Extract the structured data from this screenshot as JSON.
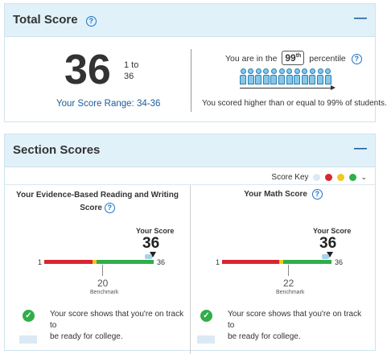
{
  "total": {
    "title": "Total Score",
    "score": "36",
    "of_line1": "1 to",
    "of_line2": "36",
    "range": "Your Score Range: 34-36",
    "percentile_prefix": "You are in the",
    "percentile_value": "99",
    "percentile_sup": "th",
    "percentile_suffix": "percentile",
    "percentile_note": "You scored higher than or equal to 99% of students."
  },
  "section": {
    "title": "Section Scores",
    "score_key_label": "Score Key",
    "key_colors": [
      "#dbe9f4",
      "#d7262f",
      "#f0c81e",
      "#2fae4a"
    ],
    "reading": {
      "title_line1": "Your Evidence-Based Reading and Writing",
      "title_line2": "Score",
      "your_score_label": "Your Score",
      "score": "36",
      "min": "1",
      "max": "36",
      "benchmark": "20",
      "benchmark_label": "Benchmark",
      "message_line1": "Your score shows that you're on track to",
      "message_line2": "be ready for college."
    },
    "math": {
      "title": "Your Math Score",
      "your_score_label": "Your Score",
      "score": "36",
      "min": "1",
      "max": "36",
      "benchmark": "22",
      "benchmark_label": "Benchmark",
      "message_line1": "Your score shows that you're on track to",
      "message_line2": "be ready for college."
    }
  }
}
